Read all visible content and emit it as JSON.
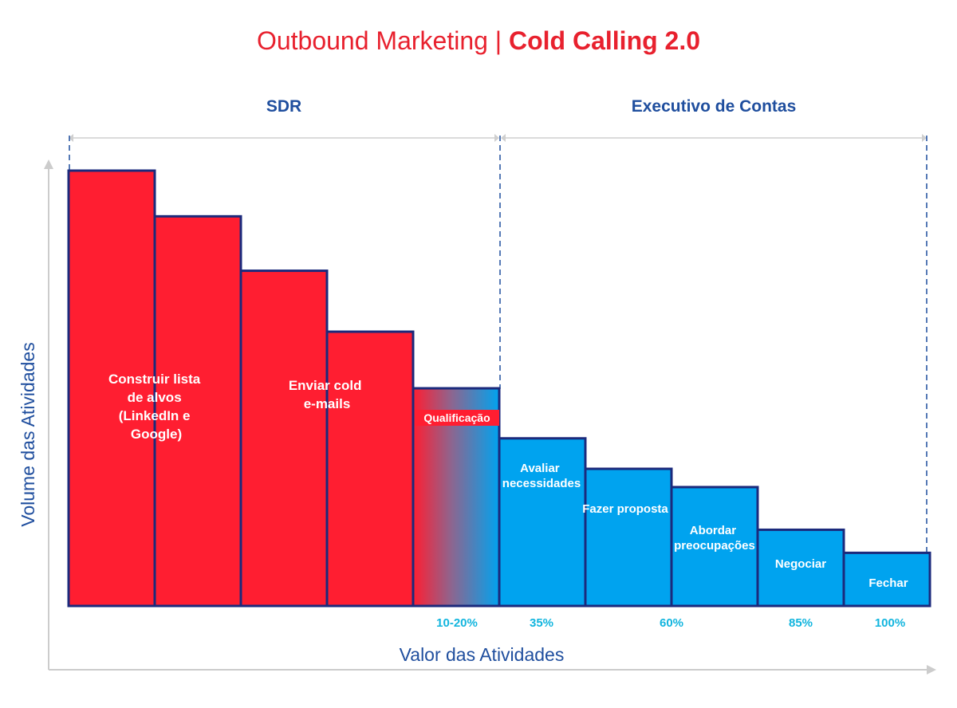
{
  "title": {
    "light": "Outbound Marketing | ",
    "bold": "Cold Calling 2.0",
    "color": "#E8212E"
  },
  "sections": [
    {
      "label": "SDR",
      "color": "#1F4E9E"
    },
    {
      "label": "Executivo de Contas",
      "color": "#1F4E9E"
    }
  ],
  "axes": {
    "xlabel": "Valor das Atividades",
    "ylabel": "Volume das Atividades",
    "label_color": "#1F4E9E"
  },
  "colors": {
    "red": "#FF1E31",
    "blue": "#00A3EF",
    "outline": "#1B2A7C",
    "pct": "#12B5DE",
    "axis": "#CCCCCC"
  },
  "chart_data": {
    "type": "bar",
    "categories": [
      "Construir lista de alvos (LinkedIn e Google)",
      "",
      "Enviar cold e-mails",
      "",
      "Qualificação",
      "Avaliar necessidades",
      "Fazer proposta",
      "Abordar preocupações",
      "Negociar",
      "Fechar"
    ],
    "values": [
      100,
      89.5,
      77,
      63,
      50,
      38.5,
      31.5,
      27.3,
      17.5,
      12.2
    ],
    "fill": [
      "red",
      "red",
      "red",
      "red",
      "gradient",
      "blue",
      "blue",
      "blue",
      "blue",
      "blue"
    ],
    "value_labels": [
      "",
      "",
      "",
      "",
      "10-20%",
      "35%",
      "",
      "60%",
      "85%",
      "100%"
    ],
    "xlabel": "Valor das Atividades",
    "ylabel": "Volume das Atividades",
    "ylim": [
      0,
      100
    ]
  }
}
